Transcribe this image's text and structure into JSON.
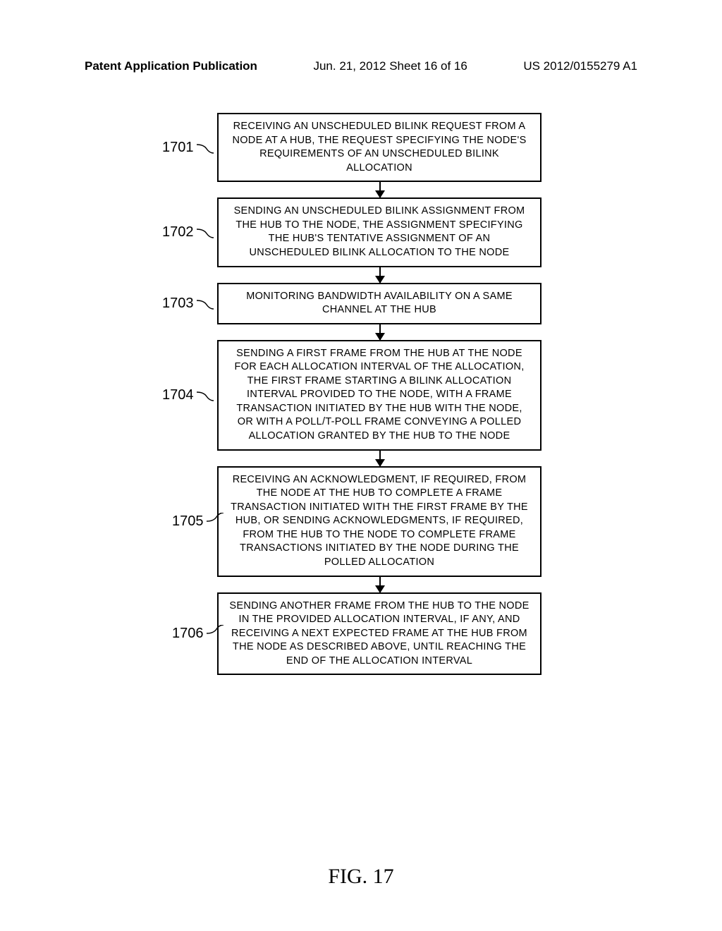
{
  "header": {
    "left": "Patent Application Publication",
    "center": "Jun. 21, 2012  Sheet 16 of 16",
    "right": "US 2012/0155279 A1"
  },
  "flowchart": {
    "steps": [
      {
        "label": "1701",
        "label_side": "left",
        "text": "RECEIVING AN UNSCHEDULED BILINK REQUEST FROM A NODE AT A HUB, THE REQUEST SPECIFYING THE NODE'S REQUIREMENTS OF AN UNSCHEDULED BILINK ALLOCATION",
        "arrow_height": 22
      },
      {
        "label": "1702",
        "label_side": "left",
        "text": "SENDING AN UNSCHEDULED BILINK ASSIGNMENT FROM THE HUB TO THE NODE, THE ASSIGNMENT SPECIFYING THE HUB'S TENTATIVE ASSIGNMENT OF AN UNSCHEDULED BILINK ALLOCATION TO THE NODE",
        "arrow_height": 22
      },
      {
        "label": "1703",
        "label_side": "left",
        "text": "MONITORING BANDWIDTH AVAILABILITY ON A SAME CHANNEL AT THE HUB",
        "arrow_height": 22
      },
      {
        "label": "1704",
        "label_side": "left",
        "text": "SENDING A FIRST FRAME FROM THE HUB AT THE NODE FOR EACH ALLOCATION INTERVAL OF THE ALLOCATION, THE FIRST FRAME STARTING A BILINK ALLOCATION INTERVAL PROVIDED TO THE NODE, WITH A FRAME TRANSACTION INITIATED BY THE HUB WITH THE NODE, OR WITH A POLL/T-POLL FRAME CONVEYING A POLLED ALLOCATION GRANTED BY THE HUB TO THE NODE",
        "arrow_height": 22
      },
      {
        "label": "1705",
        "label_side": "left-align",
        "text": "RECEIVING AN ACKNOWLEDGMENT, IF REQUIRED, FROM THE NODE AT THE HUB TO COMPLETE A FRAME TRANSACTION INITIATED WITH THE FIRST FRAME BY THE HUB, OR SENDING ACKNOWLEDGMENTS, IF REQUIRED, FROM THE HUB TO THE NODE TO COMPLETE FRAME TRANSACTIONS INITIATED BY THE NODE DURING THE  POLLED ALLOCATION",
        "arrow_height": 22
      },
      {
        "label": "1706",
        "label_side": "left-align",
        "text": "SENDING ANOTHER FRAME FROM THE HUB TO THE NODE IN THE PROVIDED ALLOCATION INTERVAL, IF ANY, AND RECEIVING A NEXT EXPECTED FRAME AT THE HUB FROM THE NODE AS DESCRIBED ABOVE, UNTIL REACHING THE END OF THE ALLOCATION INTERVAL",
        "arrow_height": 0
      }
    ]
  },
  "figure_label": "FIG. 17",
  "colors": {
    "background": "#ffffff",
    "border": "#000000",
    "text": "#000000"
  }
}
